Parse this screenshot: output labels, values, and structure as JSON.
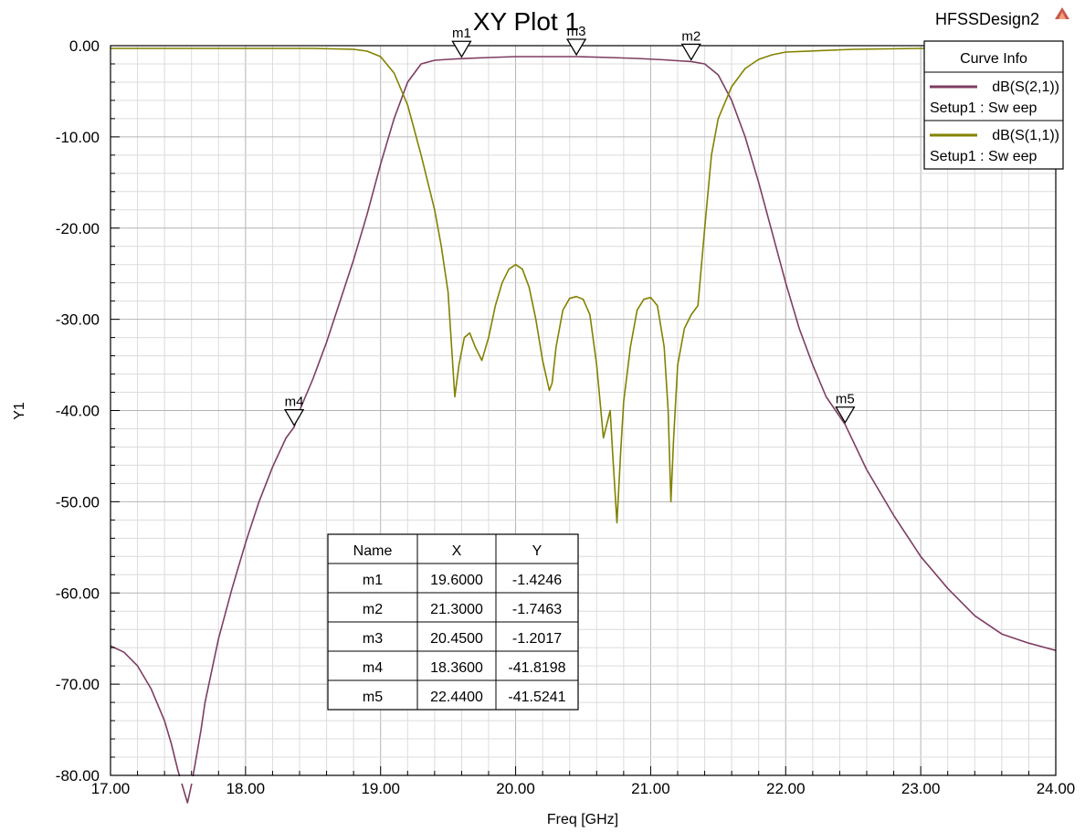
{
  "design_name": "HFSSDesign2",
  "chart_data": {
    "type": "line",
    "title": "XY Plot 1",
    "xlabel": "Freq [GHz]",
    "ylabel": "Y1",
    "xlim": [
      17,
      24
    ],
    "ylim": [
      -80,
      0
    ],
    "x_tick_labels": [
      "17.00",
      "18.00",
      "19.00",
      "20.00",
      "21.00",
      "22.00",
      "23.00",
      "24.00"
    ],
    "y_tick_labels": [
      "0.00",
      "-10.00",
      "-20.00",
      "-30.00",
      "-40.00",
      "-50.00",
      "-60.00",
      "-70.00",
      "-80.00"
    ],
    "grid": true,
    "legend": {
      "title": "Curve Info",
      "placement": "top-right",
      "entries": [
        {
          "name": "dB(S(2,1))",
          "setup": "Setup1 : Sw eep",
          "color": "#7e3d62"
        },
        {
          "name": "dB(S(1,1))",
          "setup": "Setup1 : Sw eep",
          "color": "#828200"
        }
      ]
    },
    "series": [
      {
        "name": "dB(S(2,1))",
        "color": "#7e3d62",
        "x": [
          17.0,
          17.1,
          17.2,
          17.3,
          17.4,
          17.45,
          17.5,
          17.55,
          17.57,
          17.6,
          17.63,
          17.67,
          17.7,
          17.75,
          17.8,
          17.9,
          18.0,
          18.1,
          18.2,
          18.3,
          18.36,
          18.4,
          18.5,
          18.6,
          18.7,
          18.8,
          18.9,
          19.0,
          19.1,
          19.2,
          19.3,
          19.4,
          19.5,
          19.6,
          19.8,
          20.0,
          20.2,
          20.45,
          20.7,
          20.9,
          21.1,
          21.2,
          21.3,
          21.4,
          21.5,
          21.6,
          21.7,
          21.8,
          21.9,
          22.0,
          22.1,
          22.2,
          22.3,
          22.44,
          22.6,
          22.8,
          23.0,
          23.2,
          23.4,
          23.6,
          23.8,
          24.0
        ],
        "y": [
          -65.8,
          -66.5,
          -68.0,
          -70.5,
          -74.0,
          -76.5,
          -79.5,
          -82.0,
          -83.0,
          -81.0,
          -78.5,
          -75.0,
          -72.0,
          -68.5,
          -65.0,
          -59.5,
          -54.5,
          -50.0,
          -46.2,
          -43.0,
          -41.8,
          -40.0,
          -36.5,
          -32.5,
          -28.0,
          -23.5,
          -18.5,
          -13.0,
          -8.0,
          -4.0,
          -2.0,
          -1.6,
          -1.5,
          -1.4246,
          -1.3,
          -1.2,
          -1.2,
          -1.2017,
          -1.3,
          -1.4,
          -1.55,
          -1.65,
          -1.7463,
          -2.0,
          -3.2,
          -6.0,
          -10.0,
          -15.0,
          -20.5,
          -26.0,
          -31.0,
          -35.0,
          -38.5,
          -41.5241,
          -46.5,
          -51.5,
          -56.0,
          -59.5,
          -62.5,
          -64.5,
          -65.5,
          -66.3
        ]
      },
      {
        "name": "dB(S(1,1))",
        "color": "#828200",
        "x": [
          17.0,
          17.5,
          18.0,
          18.5,
          18.8,
          18.9,
          19.0,
          19.1,
          19.2,
          19.3,
          19.4,
          19.45,
          19.5,
          19.55,
          19.58,
          19.62,
          19.66,
          19.7,
          19.75,
          19.8,
          19.85,
          19.9,
          19.95,
          20.0,
          20.05,
          20.1,
          20.15,
          20.2,
          20.25,
          20.27,
          20.3,
          20.35,
          20.4,
          20.45,
          20.5,
          20.55,
          20.6,
          20.65,
          20.7,
          20.72,
          20.75,
          20.78,
          20.8,
          20.85,
          20.9,
          20.95,
          21.0,
          21.05,
          21.1,
          21.13,
          21.15,
          21.17,
          21.2,
          21.25,
          21.3,
          21.35,
          21.4,
          21.45,
          21.5,
          21.6,
          21.7,
          21.8,
          21.9,
          22.0,
          22.5,
          23.0,
          24.0
        ],
        "y": [
          -0.3,
          -0.3,
          -0.3,
          -0.3,
          -0.4,
          -0.6,
          -1.2,
          -3.0,
          -6.5,
          -12.0,
          -18.0,
          -22.0,
          -27.0,
          -38.5,
          -35.0,
          -32.0,
          -31.5,
          -33.0,
          -34.5,
          -32.0,
          -28.5,
          -26.0,
          -24.5,
          -24.0,
          -24.5,
          -26.5,
          -30.0,
          -34.5,
          -37.8,
          -37.0,
          -33.0,
          -29.0,
          -27.7,
          -27.5,
          -27.8,
          -29.5,
          -35.0,
          -43.0,
          -40.0,
          -45.0,
          -52.3,
          -44.0,
          -39.0,
          -33.0,
          -29.0,
          -27.8,
          -27.6,
          -28.5,
          -33.0,
          -40.0,
          -50.0,
          -43.0,
          -35.0,
          -31.0,
          -29.5,
          -28.5,
          -20.0,
          -12.0,
          -8.0,
          -4.5,
          -2.5,
          -1.5,
          -1.0,
          -0.7,
          -0.4,
          -0.3,
          -0.3
        ]
      }
    ],
    "markers": [
      {
        "name": "m1",
        "x": 19.6,
        "y": -1.4246,
        "series": "dB(S(2,1))"
      },
      {
        "name": "m2",
        "x": 21.3,
        "y": -1.7463,
        "series": "dB(S(2,1))"
      },
      {
        "name": "m3",
        "x": 20.45,
        "y": -1.2017,
        "series": "dB(S(2,1))"
      },
      {
        "name": "m4",
        "x": 18.36,
        "y": -41.8198,
        "series": "dB(S(2,1))"
      },
      {
        "name": "m5",
        "x": 22.44,
        "y": -41.5241,
        "series": "dB(S(2,1))"
      }
    ],
    "marker_table": {
      "headers": [
        "Name",
        "X",
        "Y"
      ],
      "rows": [
        [
          "m1",
          "19.6000",
          "-1.4246"
        ],
        [
          "m2",
          "21.3000",
          "-1.7463"
        ],
        [
          "m3",
          "20.4500",
          "-1.2017"
        ],
        [
          "m4",
          "18.3600",
          "-41.8198"
        ],
        [
          "m5",
          "22.4400",
          "-41.5241"
        ]
      ]
    }
  }
}
